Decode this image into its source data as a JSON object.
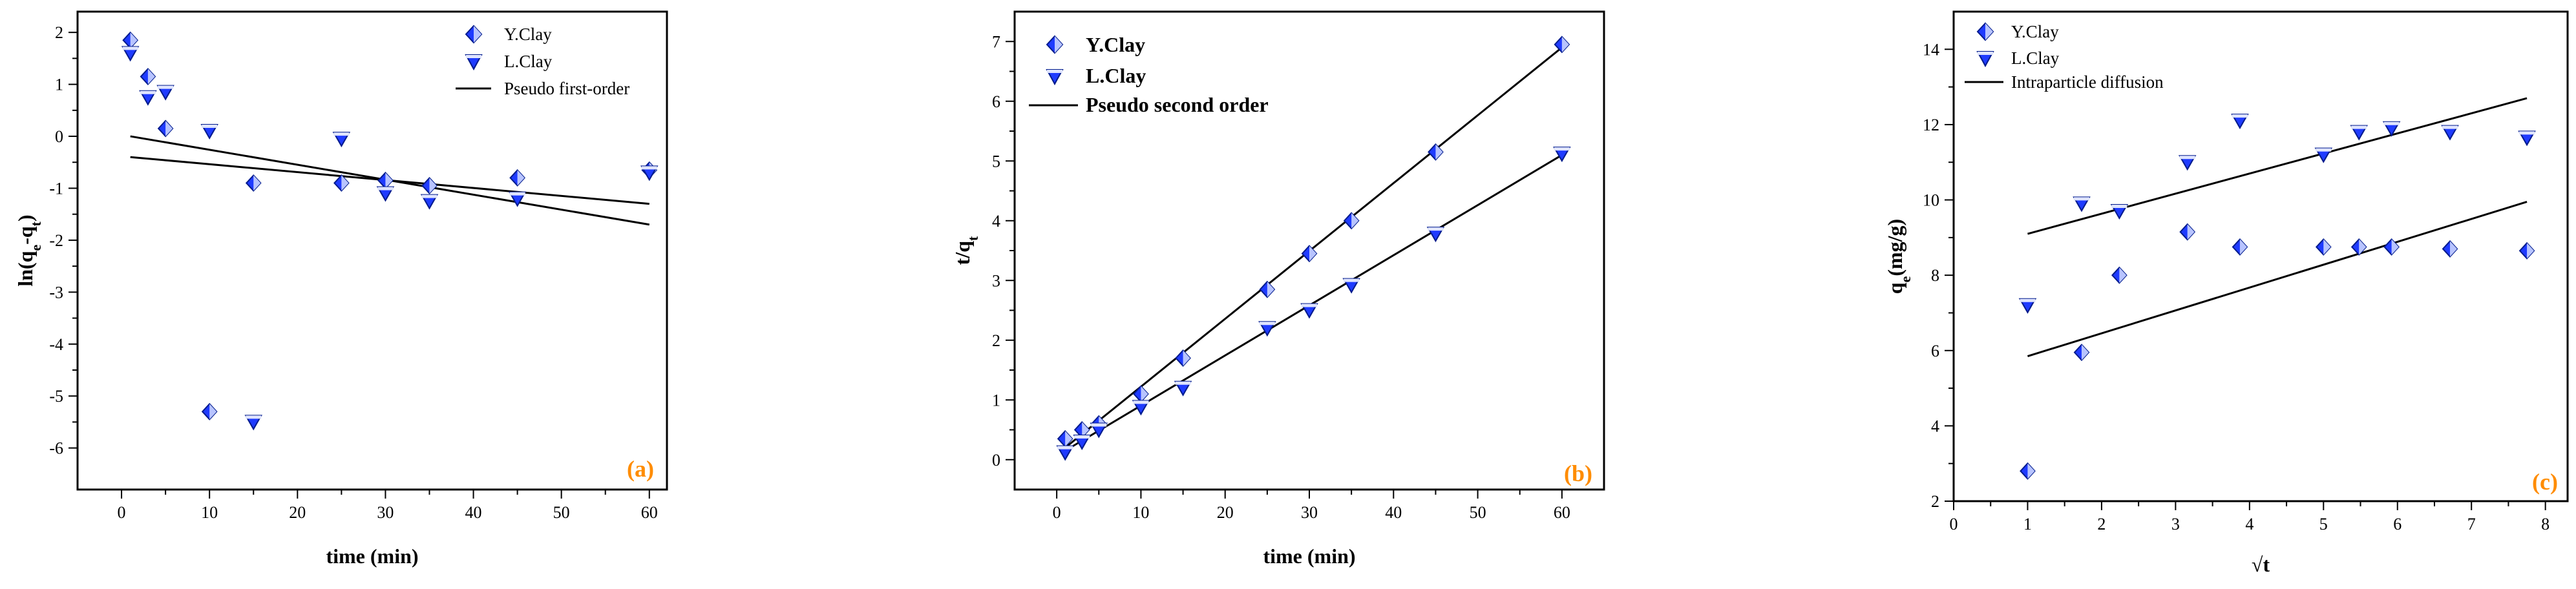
{
  "chart_data": [
    {
      "type": "scatter",
      "panel_label": "(a)",
      "panel_label_color": "#ff8c00",
      "xlabel": "time (min)",
      "ylabel": "ln(qe-qt)",
      "ylabel_main": "ln(q",
      "ylabel_sub1": "e",
      "ylabel_mid": "-q",
      "ylabel_sub2": "t",
      "ylabel_end": ")",
      "xlim": [
        -5,
        62
      ],
      "ylim": [
        -6.8,
        2.4
      ],
      "xticks": [
        0,
        10,
        20,
        30,
        40,
        50,
        60
      ],
      "yticks": [
        2,
        1,
        0,
        -1,
        -2,
        -3,
        -4,
        -5,
        -6
      ],
      "legend": [
        "Y.Clay",
        "L.Clay",
        "Pseudo first-order"
      ],
      "series": [
        {
          "name": "Y.Clay",
          "marker": "diamond",
          "color": "#1f3bff",
          "x": [
            1,
            3,
            5,
            10,
            15,
            25,
            30,
            35,
            45,
            60
          ],
          "y": [
            1.85,
            1.15,
            0.15,
            -5.3,
            -0.9,
            -0.9,
            -0.85,
            -0.95,
            -0.8,
            -0.65
          ]
        },
        {
          "name": "L.Clay",
          "marker": "triangle-down",
          "color": "#1f3bff",
          "x": [
            1,
            3,
            5,
            10,
            15,
            25,
            30,
            35,
            45,
            60
          ],
          "y": [
            1.6,
            0.75,
            0.85,
            0.1,
            -5.5,
            -0.05,
            -1.1,
            -1.25,
            -1.2,
            -0.7
          ]
        }
      ],
      "fit_lines": [
        {
          "name": "Pseudo first-order",
          "x": [
            1,
            60
          ],
          "y": [
            0.0,
            -1.7
          ]
        },
        {
          "name": "Pseudo first-order",
          "x": [
            1,
            60
          ],
          "y": [
            -0.4,
            -1.3
          ]
        }
      ]
    },
    {
      "type": "scatter",
      "panel_label": "(b)",
      "panel_label_color": "#ff8c00",
      "xlabel": "time (min)",
      "ylabel": "t/qt",
      "ylabel_main": "t/q",
      "ylabel_sub1": "t",
      "xlim": [
        -5,
        65
      ],
      "ylim": [
        -0.5,
        7.5
      ],
      "xticks": [
        0,
        10,
        20,
        30,
        40,
        50,
        60
      ],
      "yticks": [
        0,
        1,
        2,
        3,
        4,
        5,
        6,
        7
      ],
      "legend": [
        "Y.Clay",
        "L.Clay",
        "Pseudo second order"
      ],
      "series": [
        {
          "name": "Y.Clay",
          "marker": "diamond",
          "color": "#1f3bff",
          "x": [
            1,
            3,
            5,
            10,
            15,
            25,
            30,
            35,
            45,
            60
          ],
          "y": [
            0.35,
            0.5,
            0.6,
            1.1,
            1.7,
            2.85,
            3.45,
            4.0,
            5.15,
            6.95
          ]
        },
        {
          "name": "L.Clay",
          "marker": "triangle-down",
          "color": "#1f3bff",
          "x": [
            1,
            3,
            5,
            10,
            15,
            25,
            30,
            35,
            45,
            60
          ],
          "y": [
            0.12,
            0.3,
            0.5,
            0.88,
            1.2,
            2.2,
            2.5,
            2.92,
            3.78,
            5.12
          ]
        }
      ],
      "fit_lines": [
        {
          "name": "Pseudo second order",
          "x": [
            1,
            60
          ],
          "y": [
            0.2,
            6.9
          ]
        },
        {
          "name": "Pseudo second order",
          "x": [
            1,
            60
          ],
          "y": [
            0.15,
            5.1
          ]
        }
      ]
    },
    {
      "type": "scatter",
      "panel_label": "(c)",
      "panel_label_color": "#ff8c00",
      "xlabel": "√t",
      "ylabel": "qe(mg/g)",
      "ylabel_main": "q",
      "ylabel_sub1": "e",
      "ylabel_end": "(mg/g)",
      "xlim": [
        0,
        8.3
      ],
      "ylim": [
        2,
        15
      ],
      "xticks": [
        0,
        1,
        2,
        3,
        4,
        5,
        6,
        7,
        8
      ],
      "yticks": [
        2,
        4,
        6,
        8,
        10,
        12,
        14
      ],
      "legend": [
        "Y.Clay",
        "L.Clay",
        "Intraparticle diffusion"
      ],
      "series": [
        {
          "name": "Y.Clay",
          "marker": "diamond",
          "color": "#1f3bff",
          "x": [
            1.0,
            1.73,
            2.24,
            3.16,
            3.87,
            5.0,
            5.48,
            5.92,
            6.71,
            7.75
          ],
          "y": [
            2.8,
            5.95,
            8.0,
            9.15,
            8.75,
            8.75,
            8.75,
            8.75,
            8.7,
            8.65
          ]
        },
        {
          "name": "L.Clay",
          "marker": "triangle-down",
          "color": "#1f3bff",
          "x": [
            1.0,
            1.73,
            2.24,
            3.16,
            3.87,
            5.0,
            5.48,
            5.92,
            6.71,
            7.75
          ],
          "y": [
            7.2,
            9.9,
            9.7,
            11.0,
            12.1,
            11.2,
            11.8,
            11.9,
            11.8,
            11.65
          ]
        }
      ],
      "fit_lines": [
        {
          "name": "Intraparticle diffusion",
          "x": [
            1.0,
            7.75
          ],
          "y": [
            5.85,
            9.95
          ]
        },
        {
          "name": "Intraparticle diffusion",
          "x": [
            1.0,
            7.75
          ],
          "y": [
            9.1,
            12.7
          ]
        }
      ]
    }
  ]
}
